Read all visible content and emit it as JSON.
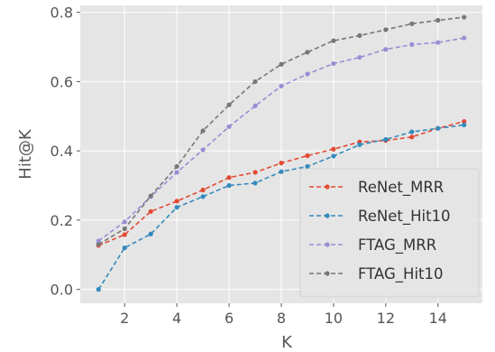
{
  "chart_data": {
    "type": "line",
    "title": "",
    "xlabel": "K",
    "ylabel": "Hit@K",
    "xlim": [
      0.3,
      15.7
    ],
    "ylim": [
      -0.04,
      0.82
    ],
    "xticks": [
      2,
      4,
      6,
      8,
      10,
      12,
      14
    ],
    "yticks": [
      0.0,
      0.2,
      0.4,
      0.6,
      0.8
    ],
    "xtick_labels": [
      "2",
      "4",
      "6",
      "8",
      "10",
      "12",
      "14"
    ],
    "ytick_labels": [
      "0.0",
      "0.2",
      "0.4",
      "0.6",
      "0.8"
    ],
    "grid": true,
    "legend_position": "lower-right",
    "x": [
      1,
      2,
      3,
      4,
      5,
      6,
      7,
      8,
      9,
      10,
      11,
      12,
      13,
      14,
      15
    ],
    "series": [
      {
        "name": "ReNet_MRR",
        "color": "#e24a33",
        "values": [
          0.127,
          0.158,
          0.225,
          0.255,
          0.287,
          0.323,
          0.338,
          0.365,
          0.386,
          0.405,
          0.426,
          0.43,
          0.44,
          0.465,
          0.485
        ]
      },
      {
        "name": "ReNet_Hit10",
        "color": "#348abd",
        "values": [
          0.0,
          0.12,
          0.16,
          0.237,
          0.268,
          0.3,
          0.307,
          0.34,
          0.355,
          0.385,
          0.418,
          0.433,
          0.455,
          0.465,
          0.475
        ]
      },
      {
        "name": "FTAG_MRR",
        "color": "#988ed5",
        "values": [
          0.14,
          0.195,
          0.268,
          0.338,
          0.403,
          0.47,
          0.53,
          0.587,
          0.622,
          0.652,
          0.67,
          0.693,
          0.707,
          0.713,
          0.726
        ]
      },
      {
        "name": "FTAG_Hit10",
        "color": "#777777",
        "values": [
          0.13,
          0.175,
          0.27,
          0.355,
          0.458,
          0.533,
          0.6,
          0.65,
          0.685,
          0.718,
          0.733,
          0.75,
          0.767,
          0.777,
          0.786
        ]
      }
    ]
  }
}
